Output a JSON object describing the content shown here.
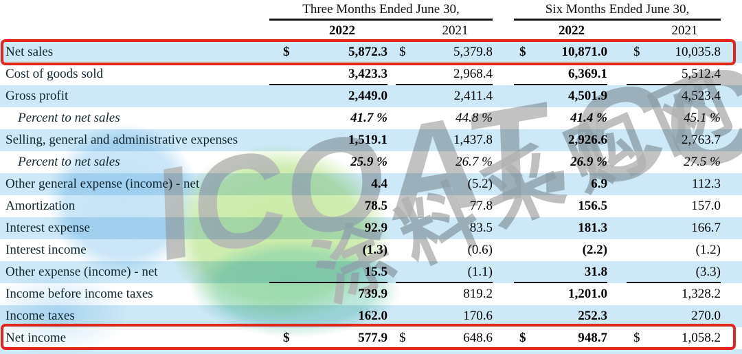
{
  "watermark": {
    "brand": "ICOAT.CC",
    "site_name": "涂料采购网"
  },
  "table": {
    "period_headers": [
      {
        "label": "Three Months Ended June 30,"
      },
      {
        "label": "Six Months Ended June 30,"
      }
    ],
    "year_headers": [
      "2022",
      "2021",
      "2022",
      "2021"
    ],
    "rows": [
      {
        "label": "Net sales",
        "dollar": "$",
        "values": [
          "5,872.3",
          "5,379.8",
          "10,871.0",
          "10,035.8"
        ]
      },
      {
        "label": "Cost of goods sold",
        "dollar": "",
        "values": [
          "3,423.3",
          "2,968.4",
          "6,369.1",
          "5,512.4"
        ]
      },
      {
        "label": "Gross profit",
        "dollar": "",
        "values": [
          "2,449.0",
          "2,411.4",
          "4,501.9",
          "4,523.4"
        ]
      },
      {
        "label": "Percent to net sales",
        "dollar": "",
        "values": [
          "41.7 %",
          "44.8 %",
          "41.4 %",
          "45.1 %"
        ]
      },
      {
        "label": "Selling, general and administrative expenses",
        "dollar": "",
        "values": [
          "1,519.1",
          "1,437.8",
          "2,926.6",
          "2,763.7"
        ]
      },
      {
        "label": "Percent to net sales",
        "dollar": "",
        "values": [
          "25.9 %",
          "26.7 %",
          "26.9 %",
          "27.5 %"
        ]
      },
      {
        "label": "Other general expense (income) - net",
        "dollar": "",
        "values": [
          "4.4",
          "(5.2)",
          "6.9",
          "112.3"
        ]
      },
      {
        "label": "Amortization",
        "dollar": "",
        "values": [
          "78.5",
          "77.8",
          "156.5",
          "157.0"
        ]
      },
      {
        "label": "Interest expense",
        "dollar": "",
        "values": [
          "92.9",
          "83.5",
          "181.3",
          "166.7"
        ]
      },
      {
        "label": "Interest income",
        "dollar": "",
        "values": [
          "(1.3)",
          "(0.6)",
          "(2.2)",
          "(1.2)"
        ]
      },
      {
        "label": "Other expense (income) - net",
        "dollar": "",
        "values": [
          "15.5",
          "(1.1)",
          "31.8",
          "(3.3)"
        ]
      },
      {
        "label": "Income before income taxes",
        "dollar": "",
        "values": [
          "739.9",
          "819.2",
          "1,201.0",
          "1,328.2"
        ]
      },
      {
        "label": "Income taxes",
        "dollar": "",
        "values": [
          "162.0",
          "170.6",
          "252.3",
          "270.0"
        ]
      },
      {
        "label": "Net income",
        "dollar": "$",
        "values": [
          "577.9",
          "648.6",
          "948.7",
          "1,058.2"
        ]
      }
    ],
    "highlighted_rows": [
      "Net sales",
      "Net income"
    ]
  },
  "colors": {
    "row_highlight_blue": "#cde8f7",
    "highlight_border_red": "#e3261d",
    "rule_black": "#151515",
    "watermark_gray": "#b5b5b5",
    "watermark_green": "#a8de70",
    "watermark_teal": "#69c8af",
    "watermark_blue": "#96cdf0"
  }
}
